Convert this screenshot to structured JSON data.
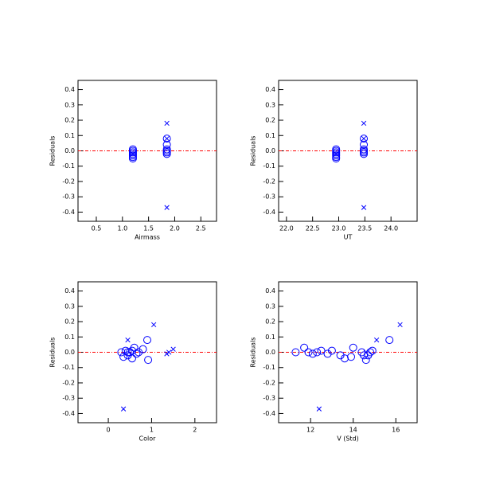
{
  "chart_data": [
    {
      "type": "scatter",
      "xlabel": "Airmass",
      "ylabel": "Residuals",
      "xlim": [
        0.15,
        2.8
      ],
      "ylim": [
        -0.46,
        0.46
      ],
      "xticks": [
        0.5,
        {
          "value": 1,
          "label": "1.0"
        },
        1.5,
        {
          "value": 2,
          "label": "2.0"
        },
        2.5
      ],
      "yticks": [
        -0.4,
        -0.3,
        -0.2,
        -0.1,
        {
          "value": 0,
          "label": "0.0"
        },
        0.1,
        0.2,
        0.3,
        0.4
      ],
      "reference_line": {
        "value": 0,
        "color": "#ff0000"
      },
      "series": [
        {
          "marker": "circle",
          "color": "#0000ff",
          "x": [
            1.2,
            1.2,
            1.2,
            1.2,
            1.2,
            1.2,
            1.2,
            1.85,
            1.85,
            1.85,
            1.85,
            1.85,
            1.85
          ],
          "values": [
            0.01,
            0.0,
            -0.01,
            -0.02,
            -0.03,
            -0.05,
            -0.04,
            0.08,
            0.04,
            0.01,
            0.0,
            -0.01,
            -0.02
          ]
        },
        {
          "marker": "cross",
          "color": "#0000ff",
          "x": [
            1.85,
            1.85,
            1.85
          ],
          "values": [
            0.18,
            -0.37,
            0.08
          ]
        }
      ]
    },
    {
      "type": "scatter",
      "xlabel": "UT",
      "ylabel": "Residuals",
      "xlim": [
        21.85,
        24.5
      ],
      "ylim": [
        -0.46,
        0.46
      ],
      "xticks": [
        {
          "value": 22,
          "label": "22.0"
        },
        22.5,
        {
          "value": 23,
          "label": "23.0"
        },
        23.5,
        {
          "value": 24,
          "label": "24.0"
        }
      ],
      "yticks": [
        -0.4,
        -0.3,
        -0.2,
        -0.1,
        {
          "value": 0,
          "label": "0.0"
        },
        0.1,
        0.2,
        0.3,
        0.4
      ],
      "reference_line": {
        "value": 0,
        "color": "#ff0000"
      },
      "series": [
        {
          "marker": "circle",
          "color": "#0000ff",
          "x": [
            22.95,
            22.95,
            22.95,
            22.95,
            22.95,
            22.95,
            22.95,
            23.48,
            23.48,
            23.48,
            23.48,
            23.48,
            23.48
          ],
          "values": [
            0.01,
            0.0,
            -0.01,
            -0.02,
            -0.03,
            -0.05,
            -0.04,
            0.08,
            0.04,
            0.01,
            0.0,
            -0.01,
            -0.02
          ]
        },
        {
          "marker": "cross",
          "color": "#0000ff",
          "x": [
            23.48,
            23.48,
            23.48
          ],
          "values": [
            0.18,
            -0.37,
            0.08
          ]
        }
      ]
    },
    {
      "type": "scatter",
      "xlabel": "Color",
      "ylabel": "Residuals",
      "xlim": [
        -0.7,
        2.5
      ],
      "ylim": [
        -0.46,
        0.46
      ],
      "xticks": [
        0,
        1,
        2
      ],
      "yticks": [
        -0.4,
        -0.3,
        -0.2,
        -0.1,
        {
          "value": 0,
          "label": "0.0"
        },
        0.1,
        0.2,
        0.3,
        0.4
      ],
      "reference_line": {
        "value": 0,
        "color": "#ff0000"
      },
      "series": [
        {
          "marker": "circle",
          "color": "#0000ff",
          "x": [
            0.3,
            0.35,
            0.4,
            0.45,
            0.5,
            0.55,
            0.6,
            0.65,
            0.7,
            0.8,
            0.9,
            0.92,
            0.45,
            0.55
          ],
          "values": [
            0.0,
            -0.03,
            0.01,
            -0.02,
            0.0,
            -0.04,
            0.03,
            -0.01,
            0.0,
            0.02,
            0.08,
            -0.05,
            0.0,
            0.01
          ]
        },
        {
          "marker": "cross",
          "color": "#0000ff",
          "x": [
            0.45,
            1.05,
            0.35,
            1.35,
            1.5,
            1.4
          ],
          "values": [
            0.08,
            0.18,
            -0.37,
            -0.01,
            0.02,
            0.0
          ]
        }
      ]
    },
    {
      "type": "scatter",
      "xlabel": "V (Std)",
      "ylabel": "Residuals",
      "xlim": [
        10.5,
        17
      ],
      "ylim": [
        -0.46,
        0.46
      ],
      "xticks": [
        12,
        14,
        16
      ],
      "yticks": [
        -0.4,
        -0.3,
        -0.2,
        -0.1,
        {
          "value": 0,
          "label": "0.0"
        },
        0.1,
        0.2,
        0.3,
        0.4
      ],
      "reference_line": {
        "value": 0,
        "color": "#ff0000"
      },
      "series": [
        {
          "marker": "circle",
          "color": "#0000ff",
          "x": [
            11.3,
            11.7,
            11.9,
            12.1,
            12.3,
            12.5,
            12.8,
            13.0,
            13.4,
            13.6,
            13.9,
            14.0,
            14.4,
            14.5,
            14.6,
            14.7,
            14.9,
            15.7,
            14.8
          ],
          "values": [
            0.0,
            0.03,
            0.0,
            -0.01,
            0.0,
            0.01,
            -0.01,
            0.01,
            -0.02,
            -0.04,
            -0.03,
            0.03,
            0.0,
            -0.02,
            -0.05,
            -0.02,
            0.01,
            0.08,
            0.0
          ]
        },
        {
          "marker": "cross",
          "color": "#0000ff",
          "x": [
            12.4,
            15.1,
            16.2,
            14.6
          ],
          "values": [
            -0.37,
            0.08,
            0.18,
            0.0
          ]
        }
      ]
    }
  ]
}
